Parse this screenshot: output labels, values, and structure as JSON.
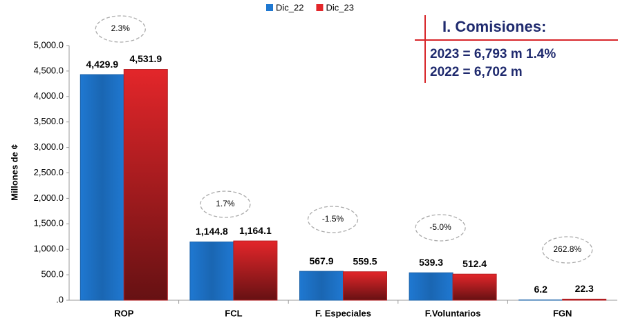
{
  "chart_data": {
    "type": "bar",
    "categories": [
      "ROP",
      "FCL",
      "F. Especiales",
      "F.Voluntarios",
      "FGN"
    ],
    "series": [
      {
        "name": "Dic_22",
        "color": "#1f78d1",
        "values": [
          4429.9,
          1144.8,
          567.9,
          539.3,
          6.2
        ],
        "value_labels": [
          "4,429.9",
          "1,144.8",
          "567.9",
          "539.3",
          "6.2"
        ]
      },
      {
        "name": "Dic_23",
        "color": "#e3262a",
        "values": [
          4531.9,
          1164.1,
          559.5,
          512.4,
          22.3
        ],
        "value_labels": [
          "4,531.9",
          "1,164.1",
          "559.5",
          "512.4",
          "22.3"
        ]
      }
    ],
    "ylabel": "Millones de ¢",
    "ylim": [
      0,
      5000
    ],
    "yticks": [
      {
        "value": 0,
        "label": ".0"
      },
      {
        "value": 500,
        "label": "500.0"
      },
      {
        "value": 1000,
        "label": "1,000.0"
      },
      {
        "value": 1500,
        "label": "1,500.0"
      },
      {
        "value": 2000,
        "label": "2,000.0"
      },
      {
        "value": 2500,
        "label": "2,500.0"
      },
      {
        "value": 3000,
        "label": "3,000.0"
      },
      {
        "value": 3500,
        "label": "3,500.0"
      },
      {
        "value": 4000,
        "label": "4,000.0"
      },
      {
        "value": 4500,
        "label": "4,500.0"
      },
      {
        "value": 5000,
        "label": "5,000.0"
      }
    ],
    "grid": false,
    "legend": "top",
    "annotations": [
      "2.3%",
      "1.7%",
      "-1.5%",
      "-5.0%",
      "262.8%"
    ],
    "text_box": {
      "title": "I. Comisiones:",
      "lines": [
        "2023 = 6,793 m 1.4%",
        "2022 = 6,702 m"
      ]
    }
  }
}
